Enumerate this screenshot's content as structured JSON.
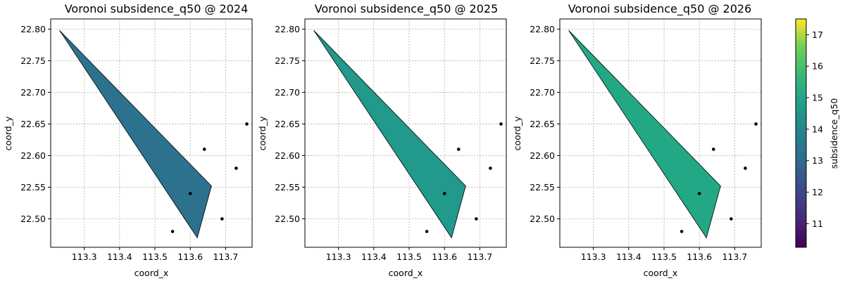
{
  "chart_data": [
    {
      "type": "voronoi-map",
      "title": "Voronoi subsidence_q50 @ 2024",
      "xlabel": "coord_x",
      "ylabel": "coord_y",
      "xlim": [
        113.205,
        113.775
      ],
      "ylim": [
        22.455,
        22.816
      ],
      "xticks": [
        "113.3",
        "113.4",
        "113.5",
        "113.6",
        "113.7"
      ],
      "yticks": [
        "22.50",
        "22.55",
        "22.60",
        "22.65",
        "22.70",
        "22.75",
        "22.80"
      ],
      "grid": true,
      "cell_value": 13.2,
      "cell_color": "#2c728e",
      "polygon": [
        [
          113.23,
          22.798
        ],
        [
          113.66,
          22.552
        ],
        [
          113.62,
          22.47
        ]
      ],
      "points": [
        [
          113.55,
          22.48
        ],
        [
          113.6,
          22.54
        ],
        [
          113.64,
          22.61
        ],
        [
          113.69,
          22.5
        ],
        [
          113.73,
          22.58
        ],
        [
          113.76,
          22.65
        ]
      ]
    },
    {
      "type": "voronoi-map",
      "title": "Voronoi subsidence_q50 @ 2025",
      "xlabel": "coord_x",
      "ylabel": "coord_y",
      "xlim": [
        113.205,
        113.775
      ],
      "ylim": [
        22.455,
        22.816
      ],
      "xticks": [
        "113.3",
        "113.4",
        "113.5",
        "113.6",
        "113.7"
      ],
      "yticks": [
        "22.50",
        "22.55",
        "22.60",
        "22.65",
        "22.70",
        "22.75",
        "22.80"
      ],
      "grid": true,
      "cell_value": 14.1,
      "cell_color": "#21998b",
      "polygon": [
        [
          113.23,
          22.798
        ],
        [
          113.66,
          22.552
        ],
        [
          113.62,
          22.47
        ]
      ],
      "points": [
        [
          113.55,
          22.48
        ],
        [
          113.6,
          22.54
        ],
        [
          113.64,
          22.61
        ],
        [
          113.69,
          22.5
        ],
        [
          113.73,
          22.58
        ],
        [
          113.76,
          22.65
        ]
      ]
    },
    {
      "type": "voronoi-map",
      "title": "Voronoi subsidence_q50 @ 2026",
      "xlabel": "coord_x",
      "ylabel": "coord_y",
      "xlim": [
        113.205,
        113.775
      ],
      "ylim": [
        22.455,
        22.816
      ],
      "xticks": [
        "113.3",
        "113.4",
        "113.5",
        "113.6",
        "113.7"
      ],
      "yticks": [
        "22.50",
        "22.55",
        "22.60",
        "22.65",
        "22.70",
        "22.75",
        "22.80"
      ],
      "grid": true,
      "cell_value": 14.8,
      "cell_color": "#22a884",
      "polygon": [
        [
          113.23,
          22.798
        ],
        [
          113.66,
          22.552
        ],
        [
          113.62,
          22.47
        ]
      ],
      "points": [
        [
          113.55,
          22.48
        ],
        [
          113.6,
          22.54
        ],
        [
          113.64,
          22.61
        ],
        [
          113.69,
          22.5
        ],
        [
          113.73,
          22.58
        ],
        [
          113.76,
          22.65
        ]
      ]
    }
  ],
  "colorbar": {
    "label": "subsidence_q50",
    "colormap": "viridis",
    "range": [
      10.25,
      17.5
    ],
    "ticks": [
      "11",
      "12",
      "13",
      "14",
      "15",
      "16",
      "17"
    ]
  }
}
